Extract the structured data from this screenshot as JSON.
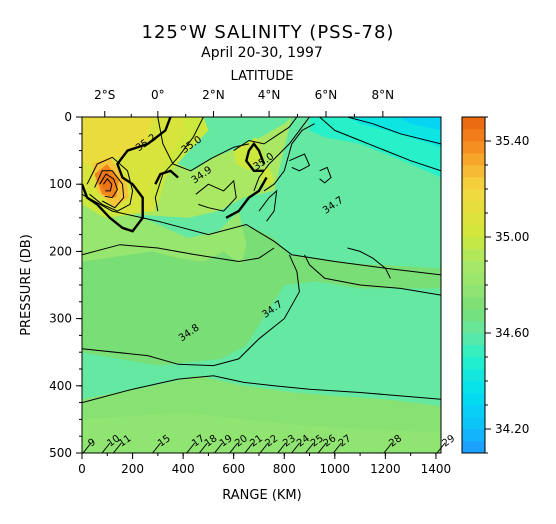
{
  "chart_data": {
    "type": "heatmap",
    "title": "125°W SALINITY (PSS-78)",
    "subtitle": "April 20-30, 1997",
    "top_axis_label": "LATITUDE",
    "top_ticks": [
      {
        "label": "2°S",
        "range_km": 90
      },
      {
        "label": "0°",
        "range_km": 300
      },
      {
        "label": "2°N",
        "range_km": 520
      },
      {
        "label": "4°N",
        "range_km": 740
      },
      {
        "label": "6°N",
        "range_km": 965
      },
      {
        "label": "8°N",
        "range_km": 1190
      }
    ],
    "xlabel": "RANGE (KM)",
    "ylabel": "PRESSURE (DB)",
    "xlim": [
      0,
      1420
    ],
    "ylim": [
      500,
      0
    ],
    "x_ticks": [
      "0",
      "200",
      "400",
      "600",
      "800",
      "1000",
      "1200",
      "1400"
    ],
    "y_ticks": [
      "0",
      "100",
      "200",
      "300",
      "400",
      "500"
    ],
    "colorbar": {
      "range": [
        34.1,
        35.5
      ],
      "step": 0.05,
      "tick_labels": [
        "35.40",
        "35.00",
        "34.60",
        "34.20"
      ],
      "tick_values": [
        35.4,
        35.0,
        34.6,
        34.2
      ]
    },
    "contour_labels": [
      {
        "text": "35.2",
        "x": 260,
        "y": 42
      },
      {
        "text": "35.0",
        "x": 440,
        "y": 45
      },
      {
        "text": "34.9",
        "x": 480,
        "y": 90
      },
      {
        "text": "35.0",
        "x": 725,
        "y": 70
      },
      {
        "text": "34.7",
        "x": 1000,
        "y": 135
      },
      {
        "text": "34.7",
        "x": 760,
        "y": 290
      },
      {
        "text": "34.8",
        "x": 430,
        "y": 325
      }
    ],
    "station_labels": [
      "9",
      "10",
      "11",
      "15",
      "17",
      "18",
      "19",
      "20",
      "21",
      "22",
      "23",
      "24",
      "25",
      "26",
      "27",
      "28",
      "29"
    ],
    "station_range_km": [
      20,
      95,
      140,
      295,
      430,
      480,
      540,
      600,
      660,
      720,
      790,
      845,
      900,
      950,
      1010,
      1210,
      1420
    ]
  }
}
